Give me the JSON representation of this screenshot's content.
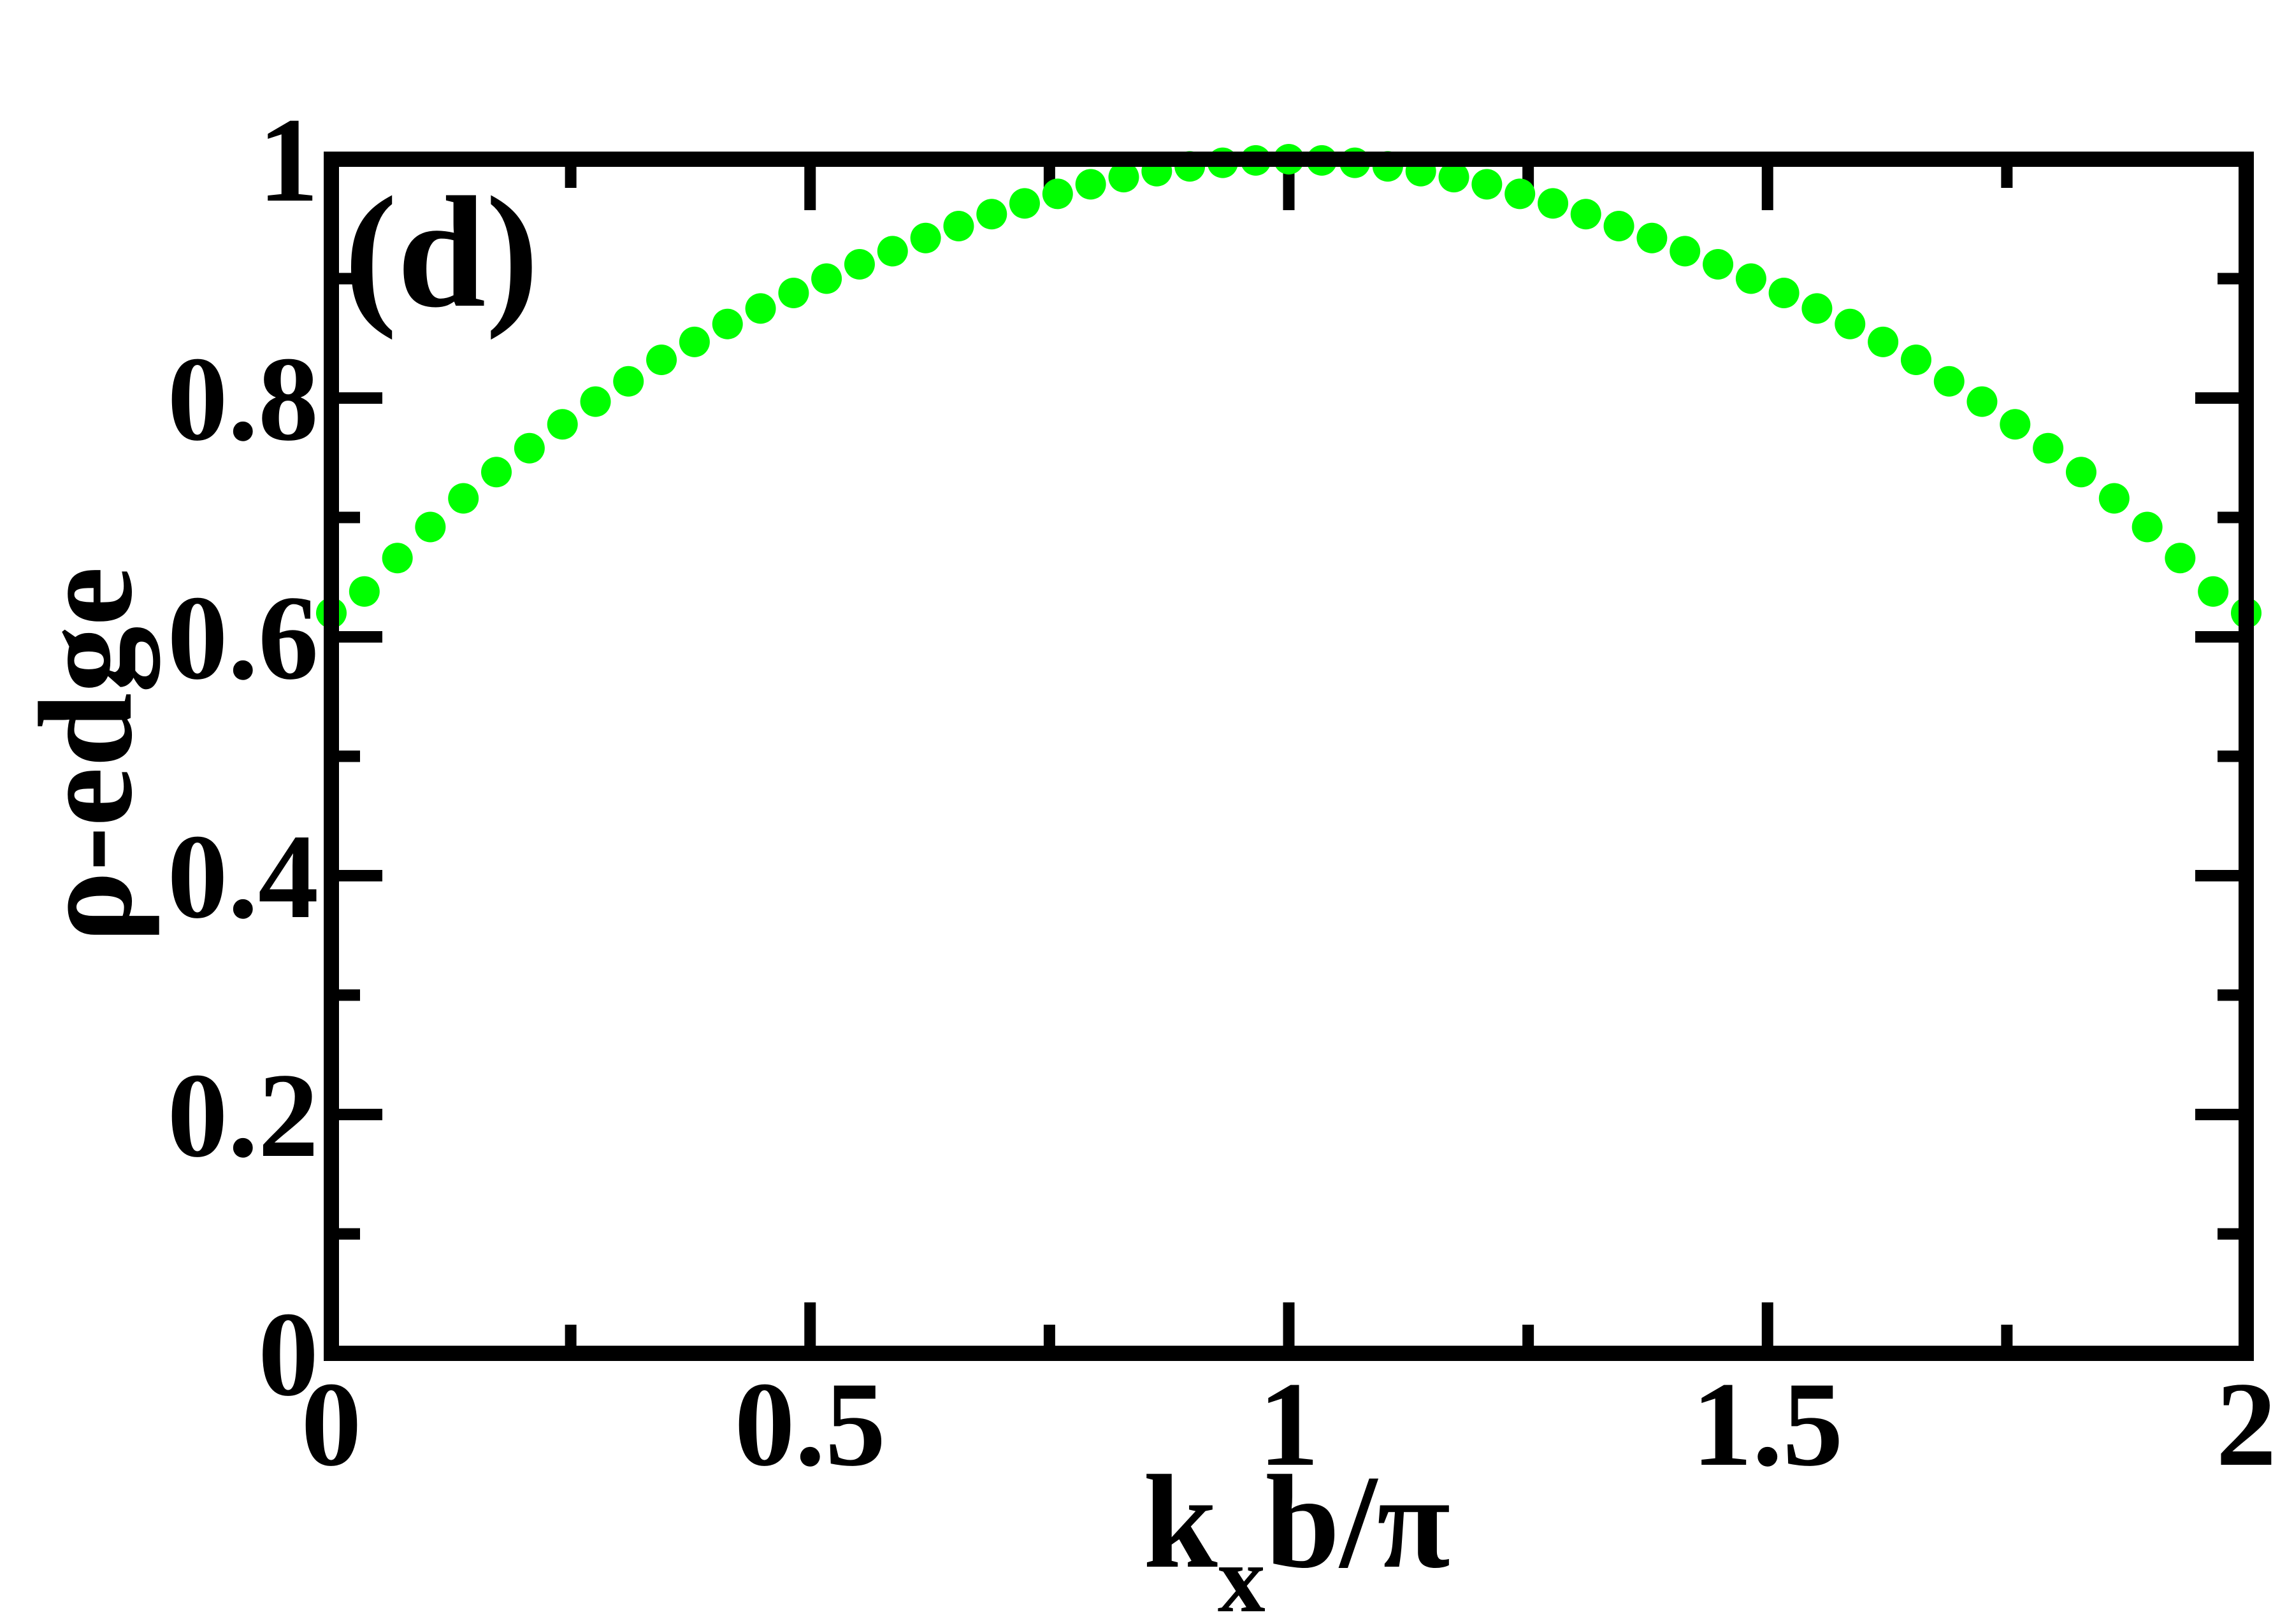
{
  "chart_data": {
    "type": "scatter",
    "panel_label": "(d)",
    "xlabel": {
      "main": "k",
      "sub": "x",
      "rest": "b/π"
    },
    "ylabel": "ρ-edge",
    "xlim": [
      0,
      2
    ],
    "ylim": [
      0,
      1
    ],
    "xticks": [
      {
        "value": 0,
        "label": "0"
      },
      {
        "value": 0.5,
        "label": "0.5"
      },
      {
        "value": 1,
        "label": "1"
      },
      {
        "value": 1.5,
        "label": "1.5"
      },
      {
        "value": 2,
        "label": "2"
      }
    ],
    "yticks": [
      {
        "value": 0,
        "label": "0"
      },
      {
        "value": 0.2,
        "label": "0.2"
      },
      {
        "value": 0.4,
        "label": "0.4"
      },
      {
        "value": 0.6,
        "label": "0.6"
      },
      {
        "value": 0.8,
        "label": "0.8"
      },
      {
        "value": 1,
        "label": "1"
      }
    ],
    "minor_tick_step_x": 0.25,
    "minor_tick_step_y": 0.1,
    "grid": false,
    "marker_color": "#00ff00",
    "axis_color": "#000000",
    "series": [
      {
        "x": [
          0.0,
          0.0345,
          0.069,
          0.1034,
          0.1379,
          0.1724,
          0.2069,
          0.2414,
          0.2759,
          0.3103,
          0.3448,
          0.3793,
          0.4138,
          0.4483,
          0.4828,
          0.5172,
          0.5517,
          0.5862,
          0.6207,
          0.6552,
          0.6897,
          0.7241,
          0.7586,
          0.7931,
          0.8276,
          0.8621,
          0.8966,
          0.931,
          0.9655,
          1.0,
          1.0345,
          1.069,
          1.1034,
          1.1379,
          1.1724,
          1.2069,
          1.2414,
          1.2759,
          1.3103,
          1.3448,
          1.3793,
          1.4138,
          1.4483,
          1.4828,
          1.5172,
          1.5517,
          1.5862,
          1.6207,
          1.6552,
          1.6897,
          1.7241,
          1.7586,
          1.7931,
          1.8276,
          1.8621,
          1.8966,
          1.931,
          1.9655,
          2.0
        ],
        "y": [
          0.62,
          0.638,
          0.666,
          0.692,
          0.716,
          0.738,
          0.758,
          0.778,
          0.797,
          0.814,
          0.832,
          0.847,
          0.862,
          0.875,
          0.888,
          0.9,
          0.912,
          0.923,
          0.934,
          0.944,
          0.954,
          0.963,
          0.971,
          0.979,
          0.985,
          0.99,
          0.994,
          0.997,
          0.999,
          1.0,
          0.999,
          0.997,
          0.994,
          0.99,
          0.985,
          0.979,
          0.971,
          0.963,
          0.954,
          0.944,
          0.934,
          0.923,
          0.912,
          0.9,
          0.888,
          0.875,
          0.862,
          0.847,
          0.832,
          0.814,
          0.797,
          0.778,
          0.758,
          0.738,
          0.716,
          0.692,
          0.666,
          0.638,
          0.62
        ]
      }
    ]
  }
}
